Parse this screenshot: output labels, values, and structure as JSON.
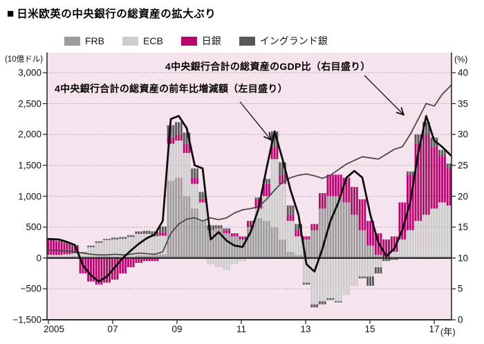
{
  "header": {
    "marker": "■",
    "title": "日米欧英の中央銀行の総資産の拡大ぶり"
  },
  "legend": {
    "items": [
      {
        "label": "FRB",
        "color": "#9c9c9c"
      },
      {
        "label": "ECB",
        "color": "#cdcdcd"
      },
      {
        "label": "日銀",
        "color": "#b5076e"
      },
      {
        "label": "イングランド銀",
        "color": "#595959"
      }
    ]
  },
  "axes": {
    "left_unit": "(10億ドル)",
    "right_unit": "(%)",
    "x_unit": "(年)",
    "left_ticks": [
      "3,000",
      "2,500",
      "2,000",
      "1,500",
      "1,000",
      "500",
      "0",
      "−500",
      "−1,500"
    ],
    "right_ticks": [
      "40",
      "35",
      "30",
      "25",
      "20",
      "15",
      "10",
      "5",
      "0"
    ],
    "x_ticks": [
      "2005",
      "07",
      "09",
      "11",
      "13",
      "15",
      "17"
    ]
  },
  "annotations": {
    "gdp_line": "4中央銀行合計の総資産のGDP比（右目盛り）",
    "total_line": "4中央銀行合計の総資産の前年比増減額（左目盛り）"
  },
  "colors": {
    "plot_background": "#f5e3ed",
    "frb": "#9c9c9c",
    "ecb": "#cdcdcd",
    "boj": "#b5076e",
    "boe": "#595959",
    "total_line": "#0d0d0d",
    "gdp_line": "#4a4a4a",
    "grid_dotted": "#8f8f8f",
    "axis_frame": "#2b2b2b"
  },
  "chart_data": {
    "type": "bar",
    "subtype": "stacked monthly bars (shown quarterly) + total line (left axis) + GDP-ratio line (right axis)",
    "title": "日米欧英の中央銀行の総資産の拡大ぶり",
    "xlabel": "年",
    "ylabel_left": "10億ドル",
    "ylabel_right": "%",
    "x_range": [
      "2005Q1",
      "2017Q3"
    ],
    "x_tick_years": [
      2005,
      2007,
      2009,
      2011,
      2013,
      2015,
      2017
    ],
    "ylim_left": [
      -1500,
      3000
    ],
    "ylim_right": [
      0,
      40
    ],
    "grid": "dotted horizontal at each tick, solid zero line",
    "legend_position": "top",
    "quarters_start": "2005Q1",
    "n_quarters": 51,
    "bar_series": [
      {
        "name": "FRB",
        "values": [
          20,
          20,
          20,
          25,
          25,
          25,
          25,
          30,
          20,
          10,
          20,
          40,
          40,
          50,
          60,
          1250,
          1300,
          1000,
          800,
          600,
          450,
          480,
          400,
          350,
          300,
          500,
          650,
          600,
          500,
          300,
          100,
          50,
          300,
          450,
          800,
          1000,
          1000,
          900,
          700,
          450,
          200,
          50,
          0,
          0,
          0,
          0,
          0,
          0,
          0,
          0,
          0
        ]
      },
      {
        "name": "ECB",
        "values": [
          30,
          30,
          40,
          50,
          50,
          150,
          220,
          260,
          280,
          300,
          320,
          350,
          350,
          300,
          300,
          600,
          600,
          700,
          400,
          300,
          -100,
          -150,
          -200,
          -100,
          -50,
          0,
          150,
          400,
          1100,
          900,
          500,
          300,
          -400,
          -750,
          -700,
          -650,
          -700,
          -600,
          -450,
          -300,
          -300,
          -150,
          0,
          100,
          300,
          450,
          600,
          700,
          800,
          900,
          850
        ]
      },
      {
        "name": "日銀",
        "values": [
          250,
          220,
          180,
          120,
          -250,
          -380,
          -430,
          -400,
          -350,
          -250,
          -150,
          -80,
          -50,
          -50,
          50,
          100,
          100,
          150,
          100,
          50,
          0,
          0,
          50,
          50,
          50,
          100,
          150,
          200,
          200,
          150,
          100,
          100,
          50,
          100,
          250,
          350,
          350,
          400,
          450,
          500,
          400,
          350,
          300,
          250,
          600,
          900,
          1250,
          1300,
          1000,
          750,
          600
        ]
      },
      {
        "name": "イングランド銀",
        "values": [
          10,
          10,
          15,
          15,
          20,
          25,
          25,
          20,
          30,
          30,
          30,
          40,
          50,
          80,
          100,
          200,
          200,
          180,
          150,
          120,
          80,
          50,
          30,
          0,
          0,
          0,
          30,
          80,
          250,
          200,
          150,
          100,
          -30,
          -50,
          -50,
          -30,
          -20,
          0,
          0,
          -30,
          -150,
          -100,
          -50,
          -30,
          0,
          50,
          150,
          200,
          150,
          100,
          80
        ]
      }
    ],
    "line_series": [
      {
        "name": "4中央銀行合計の総資産の前年比増減額（左目盛り）",
        "axis": "left",
        "unit": "10億ドル",
        "values": [
          310,
          300,
          260,
          210,
          -120,
          -280,
          -380,
          -300,
          -150,
          0,
          120,
          230,
          320,
          380,
          600,
          2250,
          2300,
          2100,
          1500,
          1450,
          300,
          420,
          280,
          200,
          180,
          420,
          800,
          1450,
          2050,
          1600,
          1100,
          700,
          -100,
          -220,
          150,
          600,
          900,
          1300,
          1410,
          1300,
          700,
          250,
          30,
          150,
          450,
          900,
          1700,
          2300,
          1900,
          1800,
          1650
        ]
      },
      {
        "name": "4中央銀行合計の総資産のGDP比（右目盛り）",
        "axis": "right",
        "unit": "%",
        "values": [
          11.3,
          11.2,
          11.1,
          11.0,
          10.8,
          10.6,
          10.5,
          10.5,
          10.6,
          10.5,
          10.6,
          10.8,
          10.7,
          10.6,
          11.0,
          14.0,
          15.5,
          16.3,
          16.5,
          16.0,
          16.5,
          16.2,
          16.5,
          17.3,
          17.8,
          18.0,
          18.3,
          19.5,
          21.0,
          22.3,
          23.0,
          23.4,
          23.6,
          23.3,
          22.9,
          23.4,
          24.3,
          25.2,
          25.8,
          26.4,
          26.2,
          26.0,
          26.8,
          27.6,
          28.0,
          30.0,
          32.5,
          35.0,
          34.6,
          36.5,
          38.0
        ]
      }
    ]
  }
}
